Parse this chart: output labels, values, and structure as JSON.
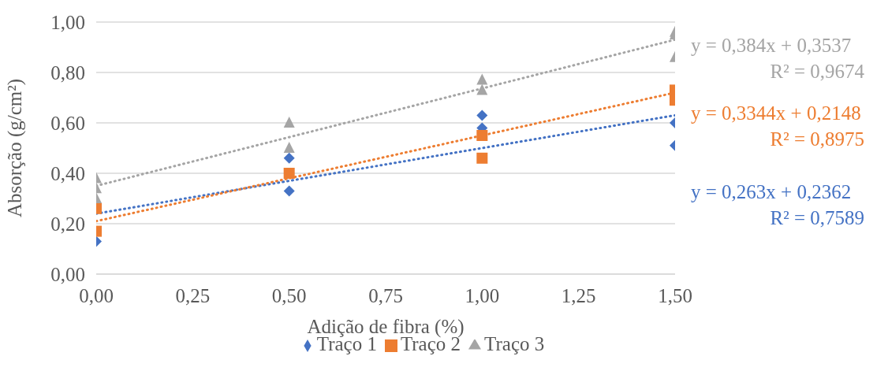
{
  "chart_data": {
    "type": "scatter",
    "xlabel": "Adição de fibra  (%)",
    "ylabel": "Absorção (g/cm²)",
    "xlim": [
      0,
      1.5
    ],
    "xticks": [
      {
        "value": 0,
        "label": "0,00"
      },
      {
        "value": 0.25,
        "label": "0,25"
      },
      {
        "value": 0.5,
        "label": "0,50"
      },
      {
        "value": 0.75,
        "label": "0,75"
      },
      {
        "value": 1,
        "label": "1,00"
      },
      {
        "value": 1.25,
        "label": "1,25"
      },
      {
        "value": 1.5,
        "label": "1,50"
      }
    ],
    "ylim": [
      0,
      1
    ],
    "yticks": [
      {
        "value": 0,
        "label": "0,00"
      },
      {
        "value": 0.2,
        "label": "0,20"
      },
      {
        "value": 0.4,
        "label": "0,40"
      },
      {
        "value": 0.6,
        "label": "0,60"
      },
      {
        "value": 0.8,
        "label": "0,80"
      },
      {
        "value": 1,
        "label": "1,00"
      }
    ],
    "grid": "y",
    "legend": "bottom",
    "series": [
      {
        "name": "Traço 1",
        "marker": "diamond",
        "color": "#4472c4",
        "x": [
          0,
          0.5,
          0.5,
          1,
          1,
          1.5,
          1.5
        ],
        "values": [
          0.13,
          0.33,
          0.46,
          0.63,
          0.58,
          0.6,
          0.51
        ]
      },
      {
        "name": "Traço 2",
        "marker": "square",
        "color": "#ed7d31",
        "x": [
          0,
          0,
          0.5,
          1,
          1,
          1.5,
          1.5
        ],
        "values": [
          0.17,
          0.26,
          0.4,
          0.55,
          0.46,
          0.73,
          0.69
        ]
      },
      {
        "name": "Traço 3",
        "marker": "triangle",
        "color": "#a5a5a5",
        "x": [
          0,
          0,
          0,
          0.5,
          0.5,
          1,
          1,
          1.5,
          1.5,
          1.5
        ],
        "values": [
          0.38,
          0.34,
          0.3,
          0.6,
          0.5,
          0.77,
          0.73,
          0.96,
          0.95,
          0.86
        ]
      },
      {
        "type": "line",
        "line_style": "dotted",
        "color": "#4472c4",
        "x": [
          0,
          1.5
        ],
        "values": [
          0.24,
          0.63
        ]
      },
      {
        "type": "line",
        "line_style": "dotted",
        "color": "#ed7d31",
        "x": [
          0,
          1.5
        ],
        "values": [
          0.21,
          0.72
        ]
      },
      {
        "type": "line",
        "line_style": "dotted",
        "color": "#a5a5a5",
        "x": [
          0,
          1.5
        ],
        "values": [
          0.35,
          0.93
        ]
      }
    ],
    "annotations": [
      "y = 0,263x + 0,2362",
      "R² = 0,7589",
      "y = 0,3344x + 0,2148",
      "R² = 0,8975",
      "y = 0,384x + 0,3537",
      "R² = 0,9674"
    ]
  }
}
